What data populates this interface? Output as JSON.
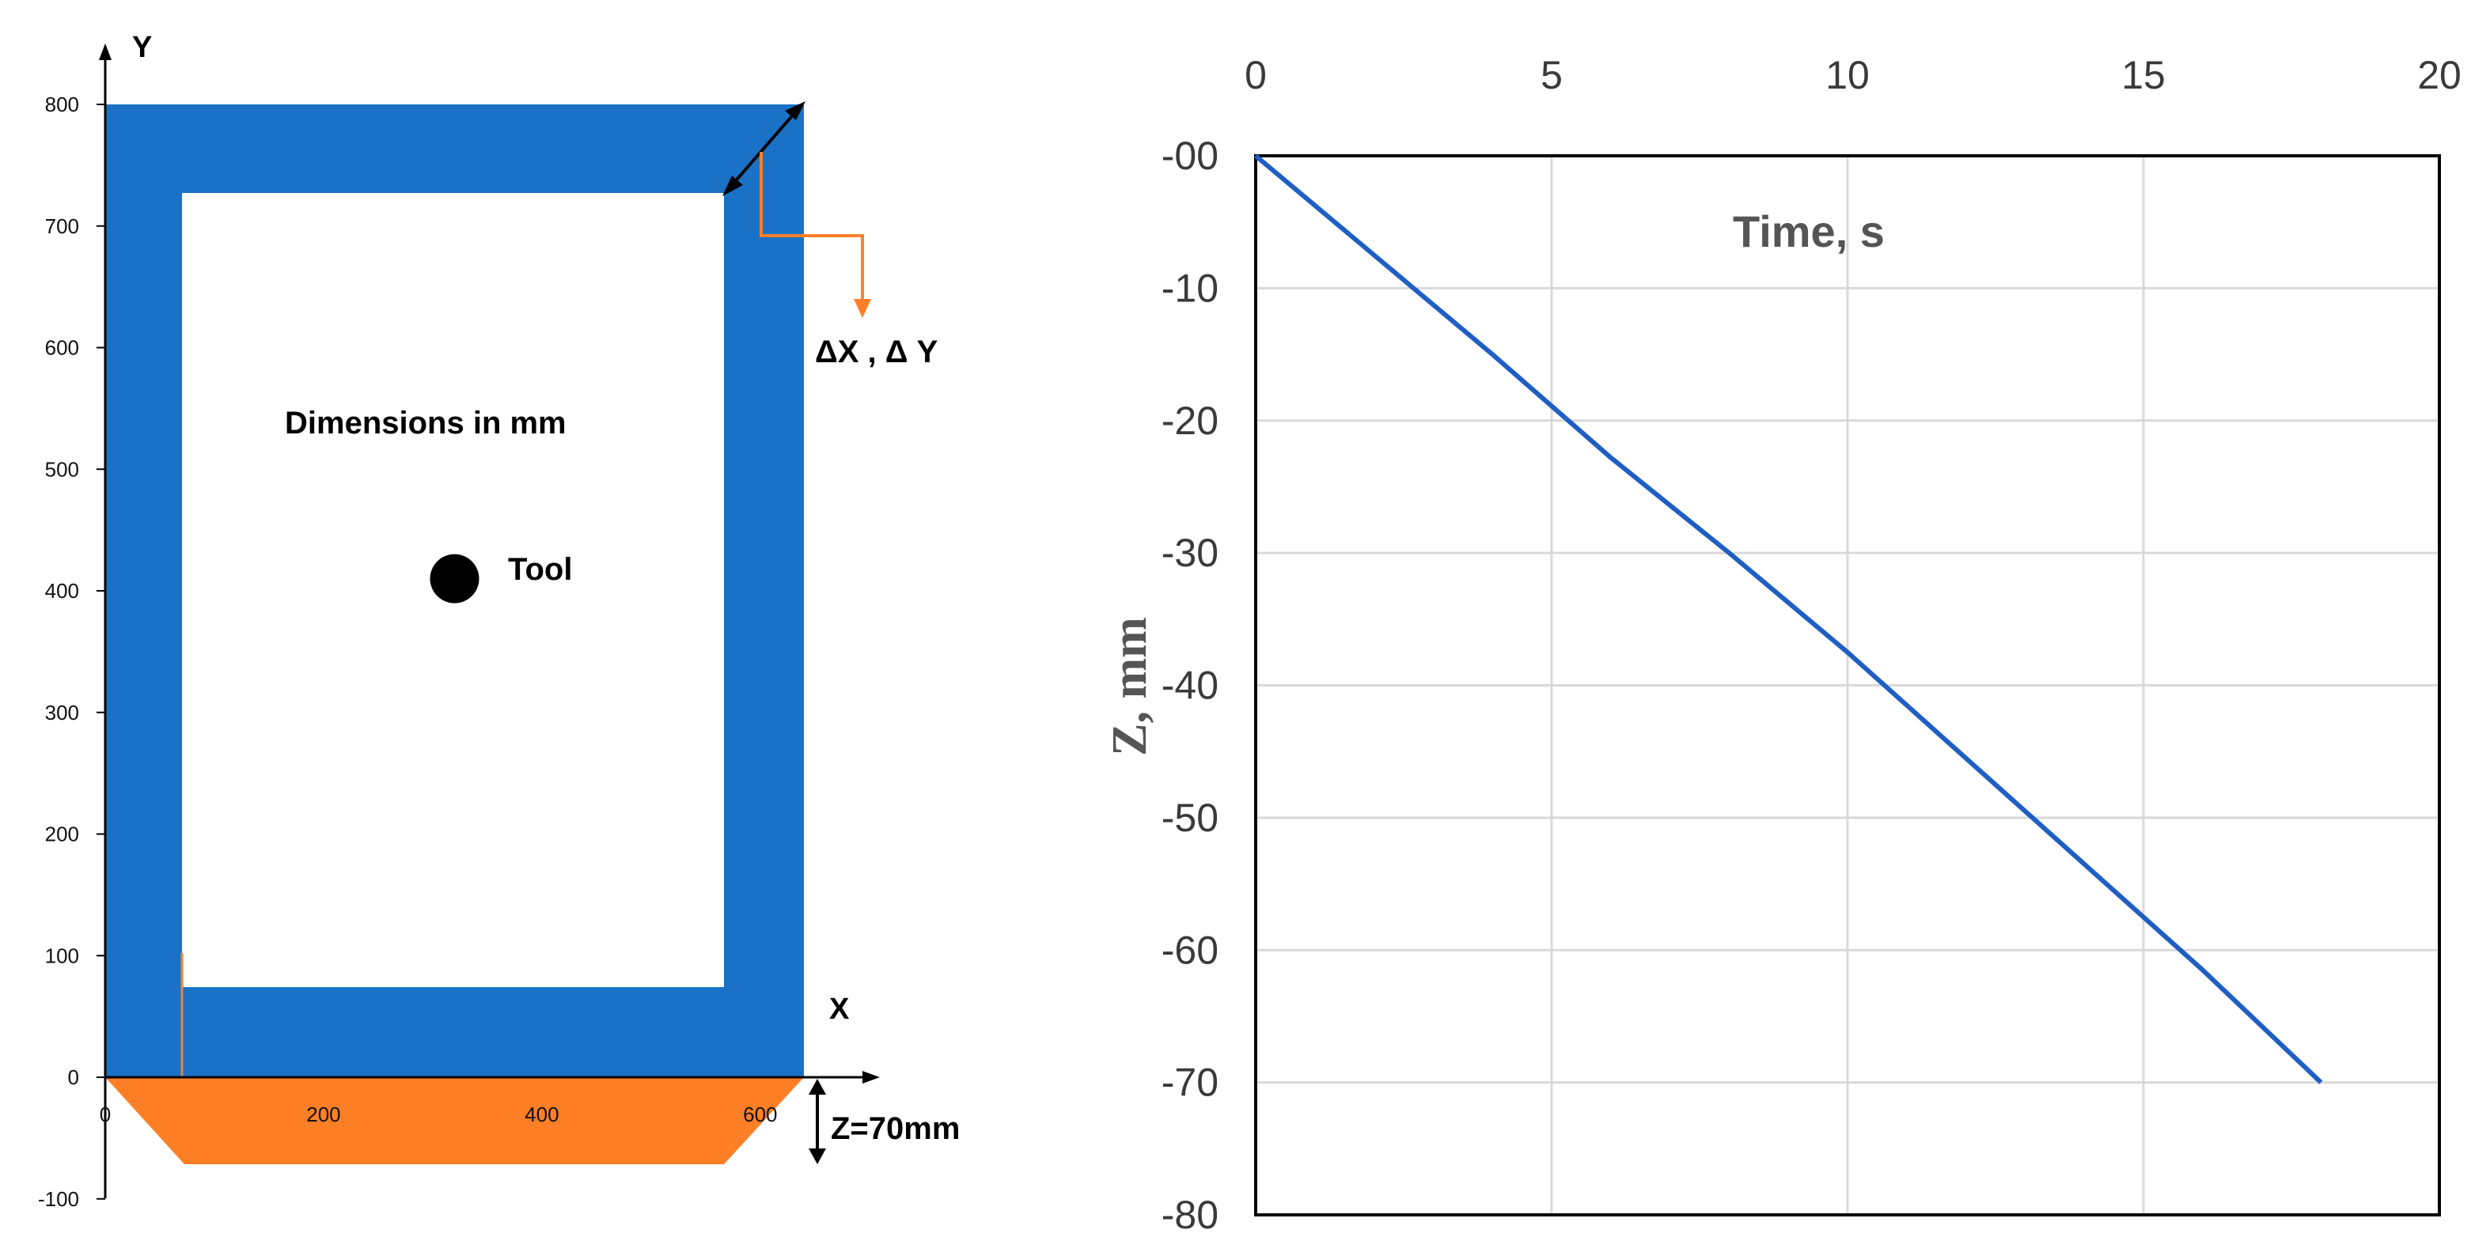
{
  "left_panel": {
    "y_axis_name": "Y",
    "x_axis_name": "X",
    "y_ticks": [
      "800",
      "700",
      "600",
      "500",
      "400",
      "300",
      "200",
      "100",
      "0",
      "-100"
    ],
    "x_ticks": [
      "0",
      "200",
      "400",
      "600"
    ],
    "dimensions_label": "Dimensions in mm",
    "tool_label": "Tool",
    "delta_label": "ΔX , Δ Y",
    "z_label": "Z=70mm",
    "colors": {
      "frame": "#1a72c7",
      "base": "#ff7f27",
      "tool": "#000000",
      "arrow": "#ff7f27"
    },
    "tool_position": {
      "x": 320,
      "y": 410
    }
  },
  "chart_data": {
    "type": "line",
    "xlabel": "Time, s",
    "ylabel": "Z, mm",
    "xlim": [
      0,
      20
    ],
    "ylim": [
      -80,
      0
    ],
    "x_axis_position": "top",
    "grid": true,
    "x_ticks": [
      "0",
      "5",
      "10",
      "15",
      "20"
    ],
    "y_ticks": [
      "-00",
      "-10",
      "-20",
      "-30",
      "-40",
      "-50",
      "-60",
      "-70",
      "-80"
    ],
    "series": [
      {
        "color": "#1f5fc4",
        "x": [
          0,
          2,
          4,
          6,
          8,
          10,
          12,
          14,
          16,
          18
        ],
        "y": [
          0,
          -7.5,
          -15,
          -22.8,
          -30,
          -37.5,
          -45.5,
          -53.5,
          -61.5,
          -70
        ]
      }
    ]
  }
}
